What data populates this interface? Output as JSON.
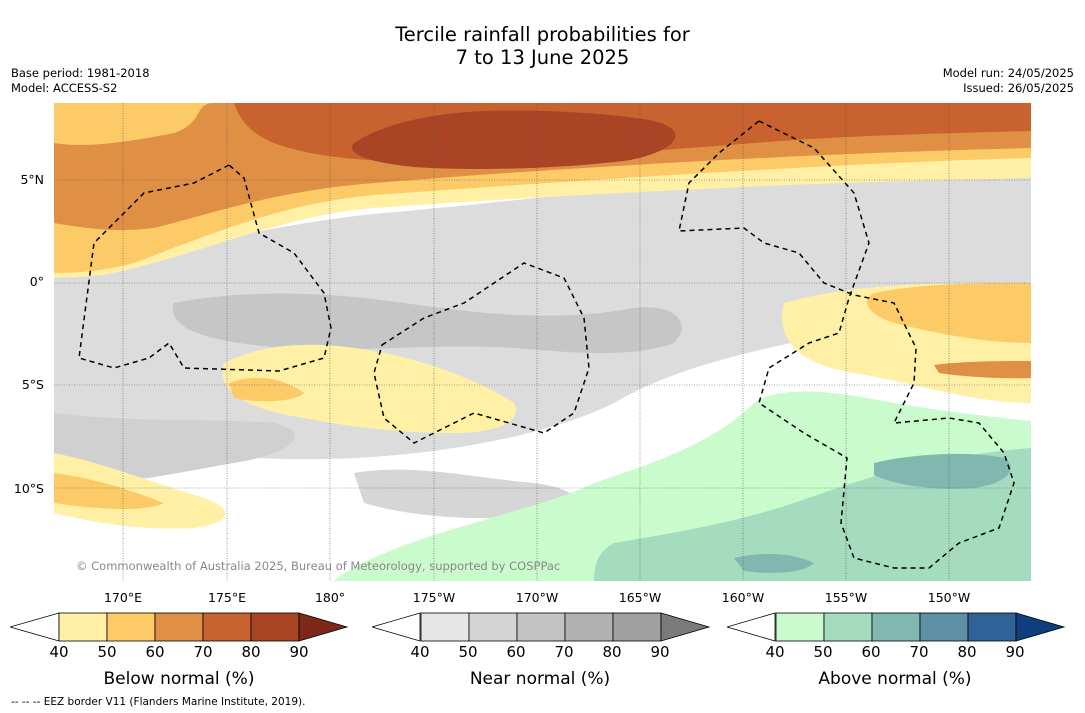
{
  "title_line1": "Tercile rainfall probabilities for",
  "title_line2": "7 to 13 June 2025",
  "base_period": "Base period: 1981-2018",
  "model": "Model: ACCESS-S2",
  "model_run": "Model run: 24/05/2025",
  "issued": "Issued: 26/05/2025",
  "lat_labels": [
    "5°N",
    "0°",
    "5°S",
    "10°S"
  ],
  "lon_labels": [
    "170°E",
    "175°E",
    "180°",
    "175°W",
    "170°W",
    "165°W",
    "160°W",
    "155°W",
    "150°W"
  ],
  "copyright": "© Commonwealth of Australia 2025, Bureau of Meteorology, supported by COSPPac",
  "footnote": "--  --  -- EEZ border V11 (Flanders Marine Institute, 2019).",
  "colorbars": [
    {
      "label": "Below normal (%)",
      "ticks": [
        "40",
        "50",
        "60",
        "70",
        "80",
        "90"
      ],
      "colors": [
        "#fff0a6",
        "#fdca68",
        "#df9044",
        "#c8622e",
        "#a94525",
        "#7e2819"
      ]
    },
    {
      "label": "Near normal (%)",
      "ticks": [
        "40",
        "50",
        "60",
        "70",
        "80",
        "90"
      ],
      "colors": [
        "#e6e6e6",
        "#d4d4d4",
        "#c3c3c3",
        "#b1b1b1",
        "#a0a0a0",
        "#7a7a7a"
      ]
    },
    {
      "label": "Above normal (%)",
      "ticks": [
        "40",
        "50",
        "60",
        "70",
        "80",
        "90"
      ],
      "colors": [
        "#c9fbcc",
        "#a5dbbe",
        "#80b8b0",
        "#5d90a4",
        "#2f6296",
        "#0f3e7c"
      ]
    }
  ]
}
